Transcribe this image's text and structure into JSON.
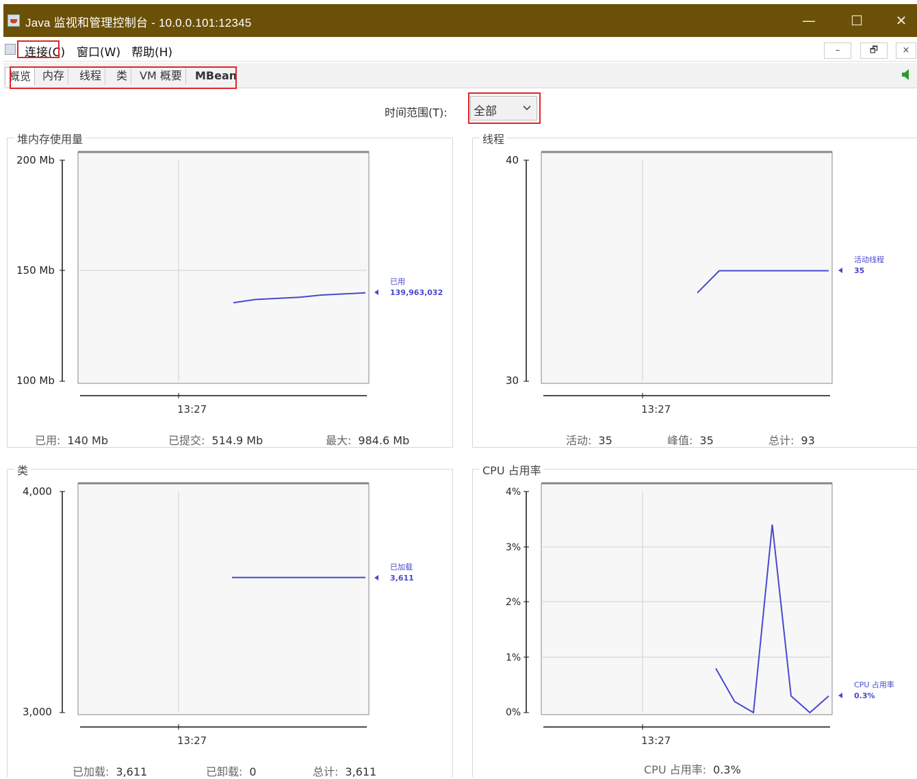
{
  "window": {
    "title": "Java 监视和管理控制台 - 10.0.0.101:12345",
    "minimize": "—",
    "maximize": "☐",
    "close": "✕"
  },
  "menu": {
    "items": [
      "连接(C)",
      "窗口(W)",
      "帮助(H)"
    ],
    "mdi_buttons": [
      "–",
      "🗗",
      "×"
    ]
  },
  "tabs": [
    "概览",
    "内存",
    "线程",
    "类",
    "VM 概要",
    "MBean"
  ],
  "time_range": {
    "label": "时间范围(T):",
    "value": "全部"
  },
  "panels": {
    "heap": {
      "title": "堆内存使用量",
      "yticks": [
        "200 Mb",
        "150 Mb",
        "100 Mb"
      ],
      "xtick": "13:27",
      "legend_name": "已用",
      "legend_value": "139,963,032",
      "stats": [
        {
          "label": "已用:",
          "value": "140 Mb"
        },
        {
          "label": "已提交:",
          "value": "514.9 Mb"
        },
        {
          "label": "最大:",
          "value": "984.6 Mb"
        }
      ]
    },
    "threads": {
      "title": "线程",
      "yticks": [
        "40",
        "30"
      ],
      "xtick": "13:27",
      "legend_name": "活动线程",
      "legend_value": "35",
      "stats": [
        {
          "label": "活动:",
          "value": "35"
        },
        {
          "label": "峰值:",
          "value": "35"
        },
        {
          "label": "总计:",
          "value": "93"
        }
      ]
    },
    "classes": {
      "title": "类",
      "yticks": [
        "4,000",
        "3,000"
      ],
      "xtick": "13:27",
      "legend_name": "已加载",
      "legend_value": "3,611",
      "stats": [
        {
          "label": "已加载:",
          "value": "3,611"
        },
        {
          "label": "已卸载:",
          "value": "0"
        },
        {
          "label": "总计:",
          "value": "3,611"
        }
      ]
    },
    "cpu": {
      "title": "CPU 占用率",
      "yticks": [
        "4%",
        "3%",
        "2%",
        "1%",
        "0%"
      ],
      "xtick": "13:27",
      "legend_name": "CPU 占用率",
      "legend_value": "0.3%",
      "stats": [
        {
          "label": "CPU 占用率:",
          "value": "0.3%"
        }
      ]
    }
  },
  "chart_data": [
    {
      "type": "line",
      "title": "堆内存使用量",
      "ylim": [
        100,
        200
      ],
      "y_unit": "Mb",
      "series": [
        {
          "name": "已用",
          "values": [
            135.5,
            137,
            137.5,
            138,
            139,
            139.5,
            140
          ]
        }
      ]
    },
    {
      "type": "line",
      "title": "线程",
      "ylim": [
        30,
        40
      ],
      "series": [
        {
          "name": "活动线程",
          "values": [
            34,
            35,
            35,
            35,
            35,
            35,
            35
          ]
        }
      ]
    },
    {
      "type": "line",
      "title": "类",
      "ylim": [
        3000,
        4000
      ],
      "series": [
        {
          "name": "已加载",
          "values": [
            3611,
            3611,
            3611,
            3611
          ]
        }
      ]
    },
    {
      "type": "line",
      "title": "CPU 占用率",
      "ylim": [
        0,
        4
      ],
      "y_unit": "%",
      "series": [
        {
          "name": "CPU 占用率",
          "values": [
            0.8,
            0.2,
            0.0,
            3.4,
            0.3,
            0.0,
            0.3
          ]
        }
      ]
    }
  ],
  "colors": {
    "titlebar": "#6b5008",
    "series_line": "#4848d0",
    "highlight": "#e0242a"
  }
}
